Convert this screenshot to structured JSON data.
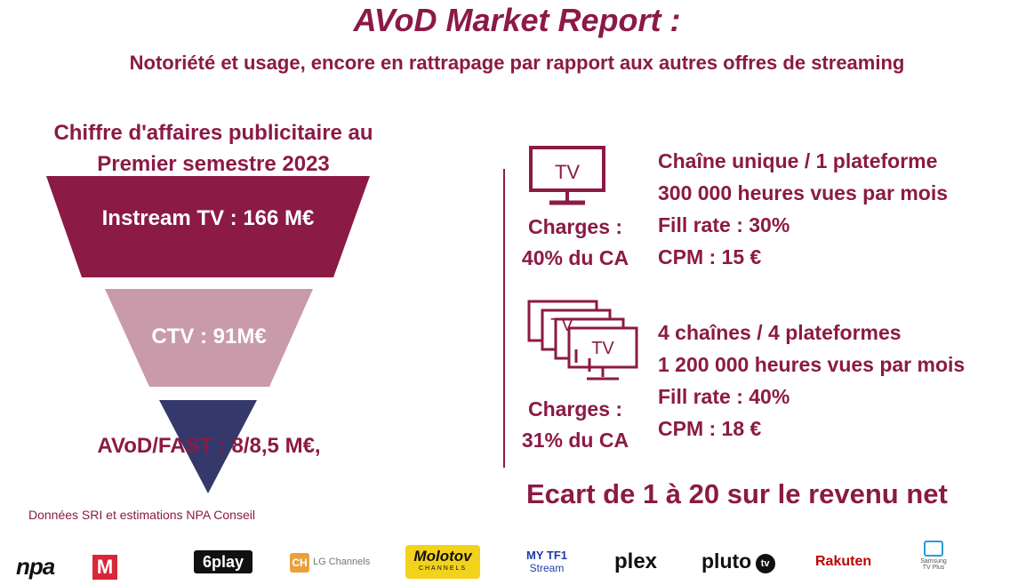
{
  "header": {
    "title": "AVoD Market Report :",
    "subtitle": "Notoriété et usage, encore en rattrapage par rapport aux autres offres de streaming"
  },
  "left": {
    "heading_line1": "Chiffre d'affaires publicitaire au",
    "heading_line2": "Premier semestre 2023",
    "funnel": [
      {
        "label": "Instream TV : 166 M€",
        "color": "#8b1a45"
      },
      {
        "label": "CTV : 91M€",
        "color": "#c99aa9"
      },
      {
        "label": "AVoD/FAST : 8/8,5 M€,",
        "color": "#35386a"
      }
    ],
    "source": "Données SRI et estimations NPA Conseil"
  },
  "right": {
    "blocks": [
      {
        "icon_text": "TV",
        "charges_line1": "Charges :",
        "charges_line2": "40% du CA",
        "lines": [
          "Chaîne unique / 1 plateforme",
          "300 000 heures vues par mois",
          "Fill rate : 30%",
          "CPM : 15 €"
        ]
      },
      {
        "icon_text": "TV",
        "charges_line1": "Charges :",
        "charges_line2": "31% du CA",
        "lines": [
          "4 chaînes / 4 plateformes",
          "1 200 000 heures vues par mois",
          "Fill rate : 40%",
          "CPM : 18 €"
        ]
      }
    ],
    "conclusion": "Ecart de 1 à 20 sur le revenu net"
  },
  "logos": {
    "npa": "npa",
    "m": "M",
    "sixplay": "6play",
    "lg_ch": "CH",
    "lg": "LG Channels",
    "molotov": "Molotov",
    "molotov_sub": "CHANNELS",
    "mytf1": "MY TF1",
    "mytf1_sub": "Stream",
    "plex": "plex",
    "pluto": "pluto",
    "pluto_tv": "tv",
    "rakuten": "Rakuten",
    "samsung_line1": "Samsung",
    "samsung_line2": "TV Plus"
  },
  "colors": {
    "brand": "#8b1a45",
    "pink": "#c99aa9",
    "navy": "#35386a"
  }
}
